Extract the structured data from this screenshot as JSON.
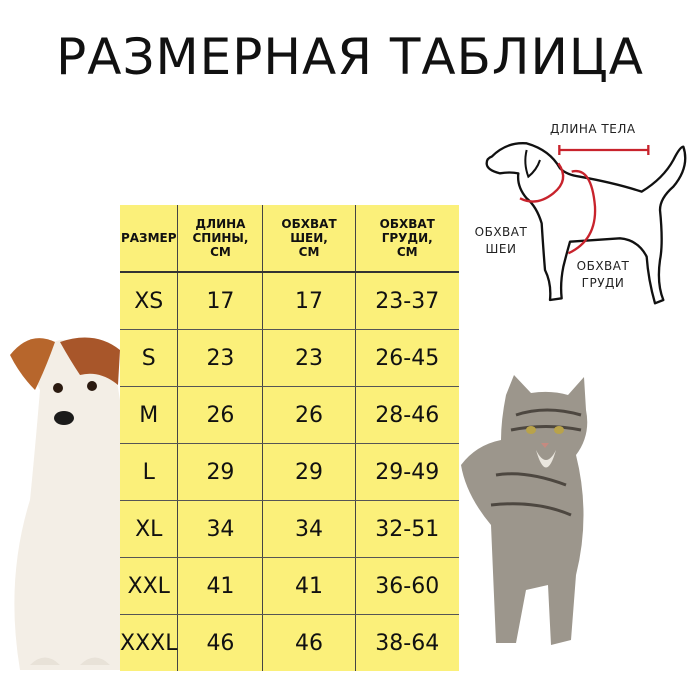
{
  "title": "РАЗМЕРНАЯ ТАБЛИЦА",
  "table": {
    "headers": [
      "РАЗМЕР",
      "ДЛИНА СПИНЫ, СМ",
      "ОБХВАТ ШЕИ, СМ",
      "ОБХВАТ ГРУДИ, СМ"
    ],
    "rows": [
      [
        "XS",
        "17",
        "17",
        "23-37"
      ],
      [
        "S",
        "23",
        "23",
        "26-45"
      ],
      [
        "M",
        "26",
        "26",
        "28-46"
      ],
      [
        "L",
        "29",
        "29",
        "29-49"
      ],
      [
        "XL",
        "34",
        "34",
        "32-51"
      ],
      [
        "XXL",
        "41",
        "41",
        "36-60"
      ],
      [
        "XXXL",
        "46",
        "46",
        "38-64"
      ]
    ],
    "background": "#fbf07a"
  },
  "diagram": {
    "body_length": "ДЛИНА ТЕЛА",
    "neck_girth": [
      "ОБХВАТ",
      "ШЕИ"
    ],
    "chest_girth": [
      "ОБХВАТ",
      "ГРУДИ"
    ],
    "accent": "#c8232c"
  }
}
